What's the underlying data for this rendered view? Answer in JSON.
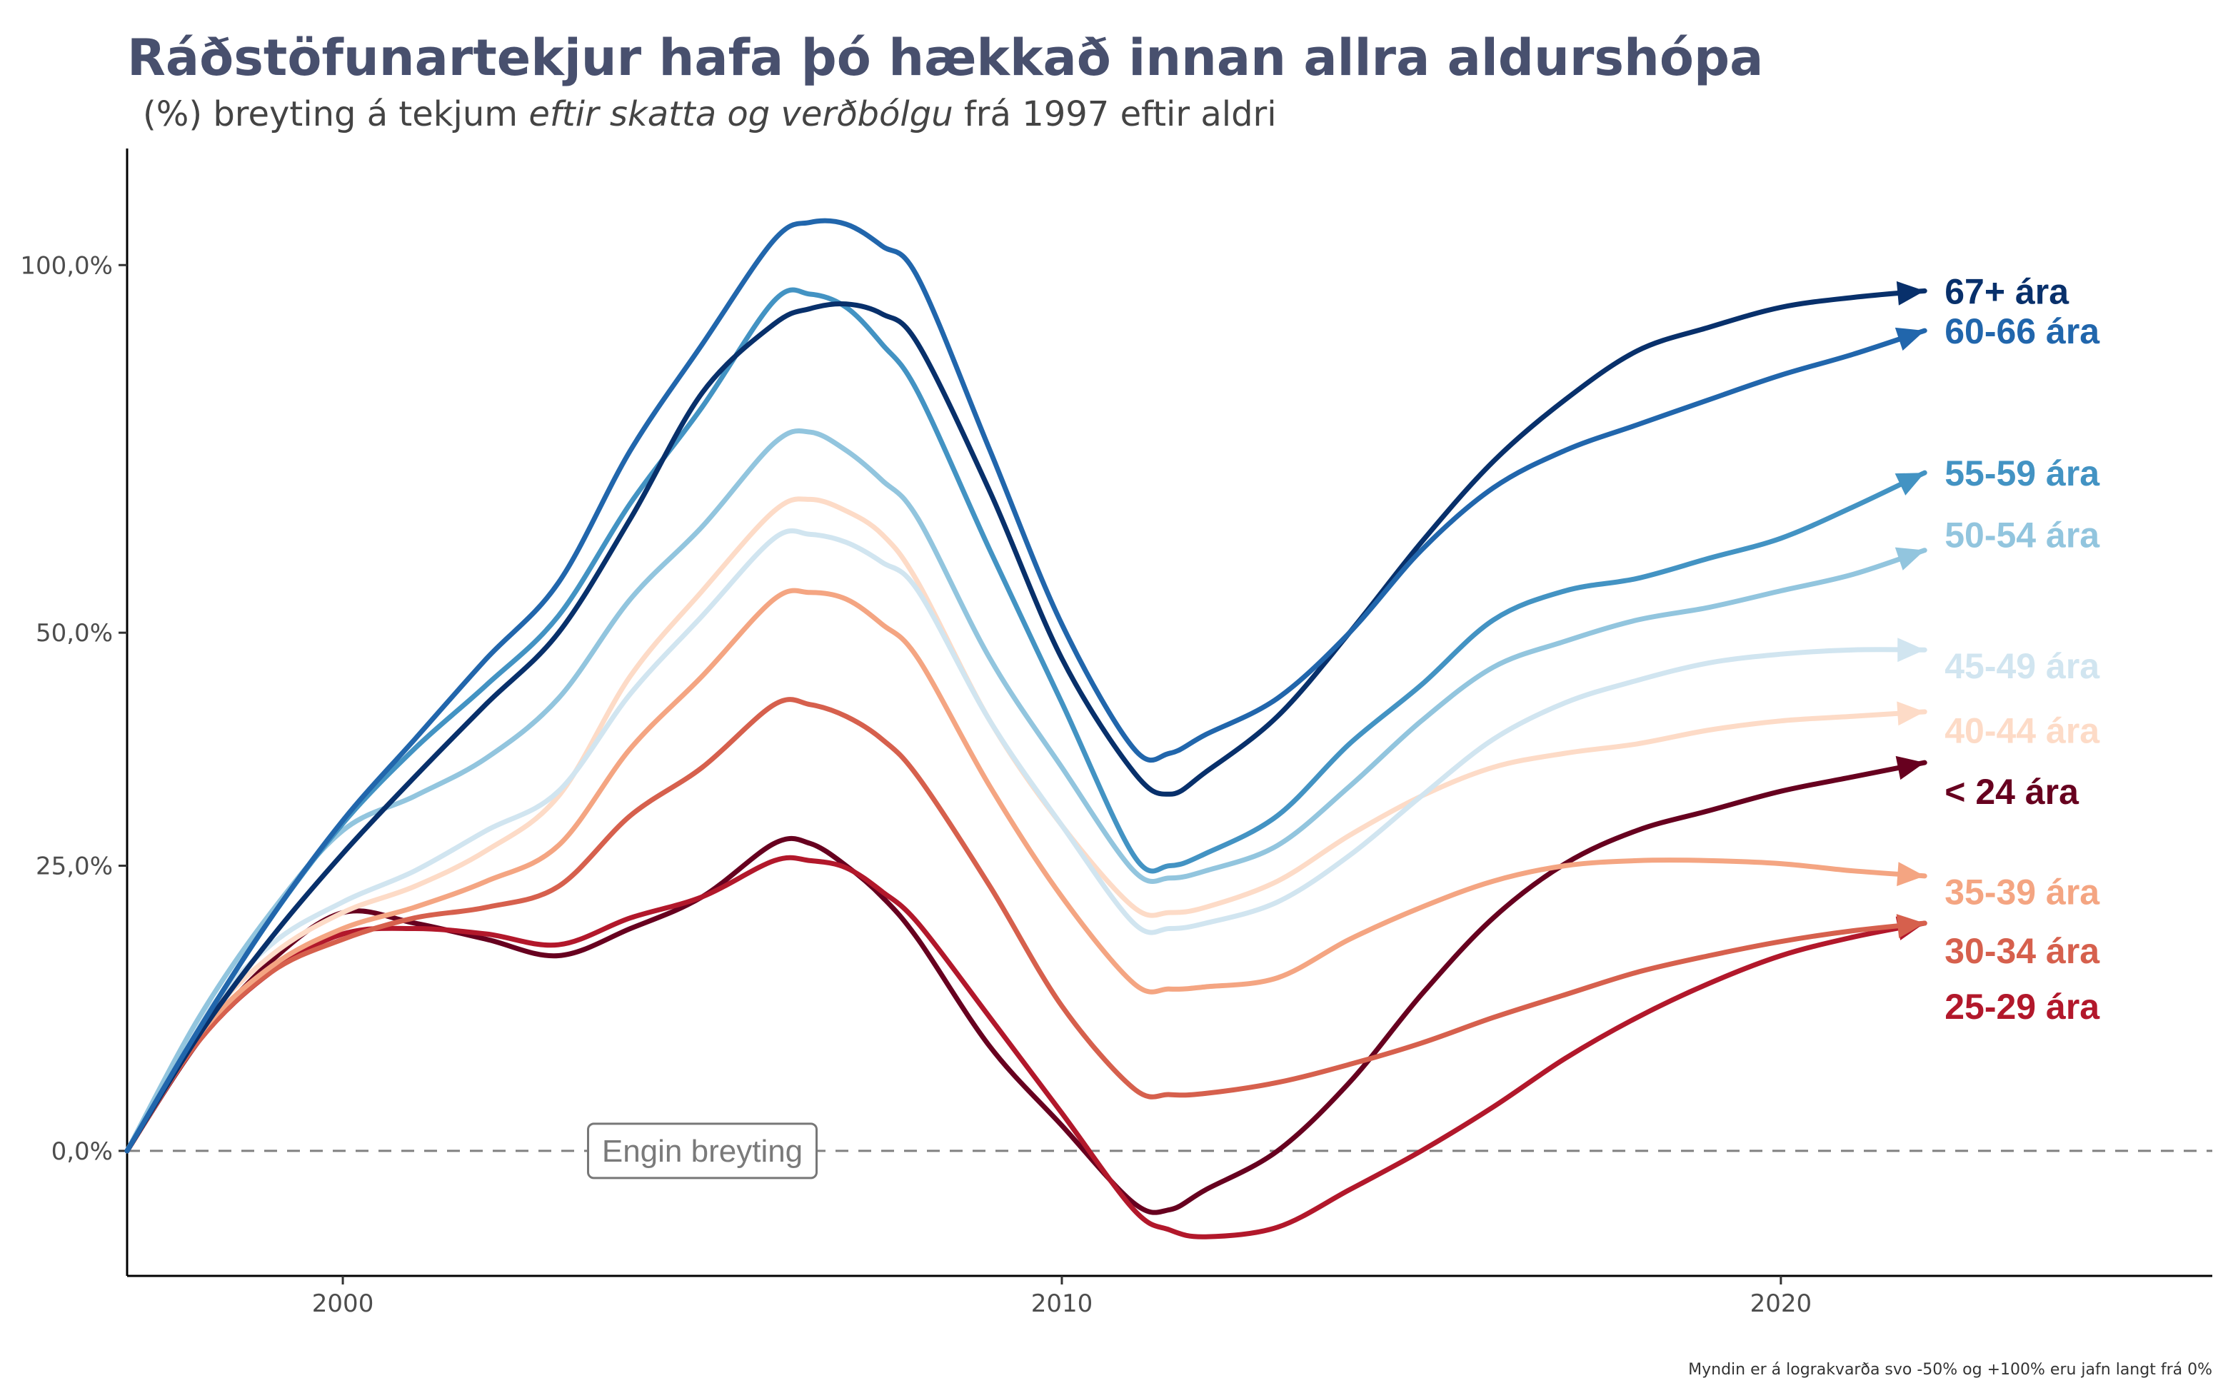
{
  "chart_data": {
    "type": "line",
    "title": "Ráðstöfunartekjur hafa þó hækkað innan allra aldurshópa",
    "subtitle": {
      "before": "(%) breyting á tekjum ",
      "emphasis": "eftir skatta og verðbólgu",
      "after": " frá 1997 eftir aldri"
    },
    "xlabel": "",
    "ylabel": "",
    "x_scale": "linear",
    "y_scale": "log(1 + value)",
    "xlim": [
      1997,
      2026
    ],
    "ylim": [
      -0.0932,
      1.191
    ],
    "x_ticks": [
      {
        "value": 2000,
        "label": "2000"
      },
      {
        "value": 2010,
        "label": "2010"
      },
      {
        "value": 2020,
        "label": "2020"
      }
    ],
    "y_ticks": [
      {
        "value": 0.0,
        "label": "0,0%"
      },
      {
        "value": 0.25,
        "label": "25,0%"
      },
      {
        "value": 0.5,
        "label": "50,0%"
      },
      {
        "value": 1.0,
        "label": "100,0%"
      }
    ],
    "reference_line": {
      "value": 0.0,
      "style": "dashed",
      "color": "#808080"
    },
    "annotation": {
      "text": "Engin breyting",
      "x": 2005,
      "y": 0.0
    },
    "caption": "Myndin er á lograkvarða svo -50% og +100% eru jafn langt frá 0%",
    "grid": false,
    "legend": "direct labels at line ends",
    "x": [
      1997,
      1998,
      1999,
      2000,
      2001,
      2002,
      2003,
      2004,
      2005,
      2006,
      2006.5,
      2007,
      2007.5,
      2008,
      2009,
      2010,
      2011,
      2011.5,
      2012,
      2013,
      2014,
      2015,
      2016,
      2017,
      2018,
      2019,
      2020,
      2021,
      2022
    ],
    "series": [
      {
        "name": "67+ ára",
        "color": "#08306b",
        "label": "67+ ára",
        "values": [
          0,
          0.095,
          0.181,
          0.262,
          0.34,
          0.419,
          0.5,
          0.64,
          0.81,
          0.91,
          0.933,
          0.94,
          0.925,
          0.88,
          0.675,
          0.47,
          0.345,
          0.322,
          0.345,
          0.405,
          0.5,
          0.61,
          0.715,
          0.8,
          0.87,
          0.905,
          0.935,
          0.95,
          0.96
        ]
      },
      {
        "name": "60-66 ára",
        "color": "#2166ac",
        "label": "60-66 ára",
        "values": [
          0,
          0.1,
          0.2,
          0.295,
          0.38,
          0.47,
          0.56,
          0.73,
          0.88,
          1.04,
          1.068,
          1.065,
          1.03,
          0.98,
          0.73,
          0.51,
          0.37,
          0.365,
          0.385,
          0.425,
          0.5,
          0.6,
          0.68,
          0.73,
          0.765,
          0.8,
          0.835,
          0.865,
          0.9
        ]
      },
      {
        "name": "55-59 ára",
        "color": "#4393c3",
        "label": "55-59 ára",
        "values": [
          0,
          0.1,
          0.2,
          0.292,
          0.37,
          0.44,
          0.52,
          0.66,
          0.79,
          0.945,
          0.955,
          0.935,
          0.88,
          0.81,
          0.6,
          0.42,
          0.26,
          0.25,
          0.262,
          0.3,
          0.375,
          0.44,
          0.515,
          0.55,
          0.565,
          0.59,
          0.615,
          0.655,
          0.7
        ]
      },
      {
        "name": "50-54 ára",
        "color": "#92c5de",
        "label": "50-54 ára",
        "values": [
          0,
          0.11,
          0.205,
          0.285,
          0.32,
          0.36,
          0.425,
          0.54,
          0.63,
          0.74,
          0.755,
          0.73,
          0.69,
          0.64,
          0.47,
          0.35,
          0.245,
          0.238,
          0.245,
          0.27,
          0.33,
          0.4,
          0.46,
          0.49,
          0.515,
          0.53,
          0.55,
          0.57,
          0.6
        ]
      },
      {
        "name": "45-49 ára",
        "color": "#d1e5f0",
        "label": "45-49 ára",
        "values": [
          0,
          0.105,
          0.175,
          0.215,
          0.245,
          0.285,
          0.325,
          0.43,
          0.52,
          0.615,
          0.62,
          0.61,
          0.585,
          0.55,
          0.4,
          0.29,
          0.195,
          0.19,
          0.195,
          0.215,
          0.26,
          0.32,
          0.38,
          0.42,
          0.445,
          0.465,
          0.475,
          0.48,
          0.48
        ]
      },
      {
        "name": "40-44 ára",
        "color": "#fddbc7",
        "label": "40-44 ára",
        "values": [
          0,
          0.1,
          0.165,
          0.205,
          0.23,
          0.265,
          0.32,
          0.45,
          0.55,
          0.65,
          0.665,
          0.65,
          0.62,
          0.56,
          0.4,
          0.29,
          0.21,
          0.205,
          0.21,
          0.235,
          0.28,
          0.32,
          0.35,
          0.365,
          0.375,
          0.39,
          0.4,
          0.405,
          0.41
        ]
      },
      {
        "name": "35-39 ára",
        "color": "#f4a582",
        "label": "35-39 ára",
        "values": [
          0,
          0.095,
          0.155,
          0.19,
          0.21,
          0.235,
          0.27,
          0.37,
          0.45,
          0.54,
          0.548,
          0.54,
          0.51,
          0.47,
          0.33,
          0.22,
          0.14,
          0.135,
          0.137,
          0.145,
          0.18,
          0.21,
          0.235,
          0.25,
          0.255,
          0.255,
          0.252,
          0.245,
          0.24
        ]
      },
      {
        "name": "30-34 ára",
        "color": "#d6604d",
        "label": "30-34 ára",
        "values": [
          0,
          0.09,
          0.15,
          0.18,
          0.2,
          0.21,
          0.23,
          0.3,
          0.35,
          0.418,
          0.418,
          0.405,
          0.38,
          0.34,
          0.23,
          0.12,
          0.05,
          0.045,
          0.046,
          0.055,
          0.07,
          0.088,
          0.11,
          0.13,
          0.15,
          0.165,
          0.178,
          0.188,
          0.195
        ]
      },
      {
        "name": "25-29 ára",
        "color": "#b2182b",
        "label": "25-29 ára",
        "values": [
          0,
          0.09,
          0.15,
          0.185,
          0.19,
          0.185,
          0.175,
          0.2,
          0.22,
          0.255,
          0.255,
          0.248,
          0.225,
          0.195,
          0.11,
          0.03,
          -0.045,
          -0.06,
          -0.065,
          -0.058,
          -0.03,
          0.0,
          0.035,
          0.075,
          0.11,
          0.14,
          0.165,
          0.182,
          0.195
        ]
      },
      {
        "name": "< 24 ára",
        "color": "#67001f",
        "label": "< 24 ára",
        "values": [
          0,
          0.09,
          0.16,
          0.205,
          0.195,
          0.18,
          0.165,
          0.19,
          0.22,
          0.272,
          0.272,
          0.25,
          0.22,
          0.18,
          0.085,
          0.02,
          -0.04,
          -0.045,
          -0.03,
          0.0,
          0.055,
          0.13,
          0.2,
          0.252,
          0.285,
          0.305,
          0.325,
          0.34,
          0.355
        ]
      }
    ]
  },
  "label_rows": [
    {
      "series_index": 0,
      "label_value": 0.96
    },
    {
      "series_index": 1,
      "label_value": 0.9
    },
    {
      "series_index": 2,
      "label_value": 0.7
    },
    {
      "series_index": 3,
      "label_value": 0.62
    },
    {
      "series_index": 4,
      "label_value": 0.462
    },
    {
      "series_index": 5,
      "label_value": 0.39
    },
    {
      "series_index": 9,
      "label_value": 0.325
    },
    {
      "series_index": 6,
      "label_value": 0.225
    },
    {
      "series_index": 7,
      "label_value": 0.17
    },
    {
      "series_index": 8,
      "label_value": 0.12
    }
  ]
}
